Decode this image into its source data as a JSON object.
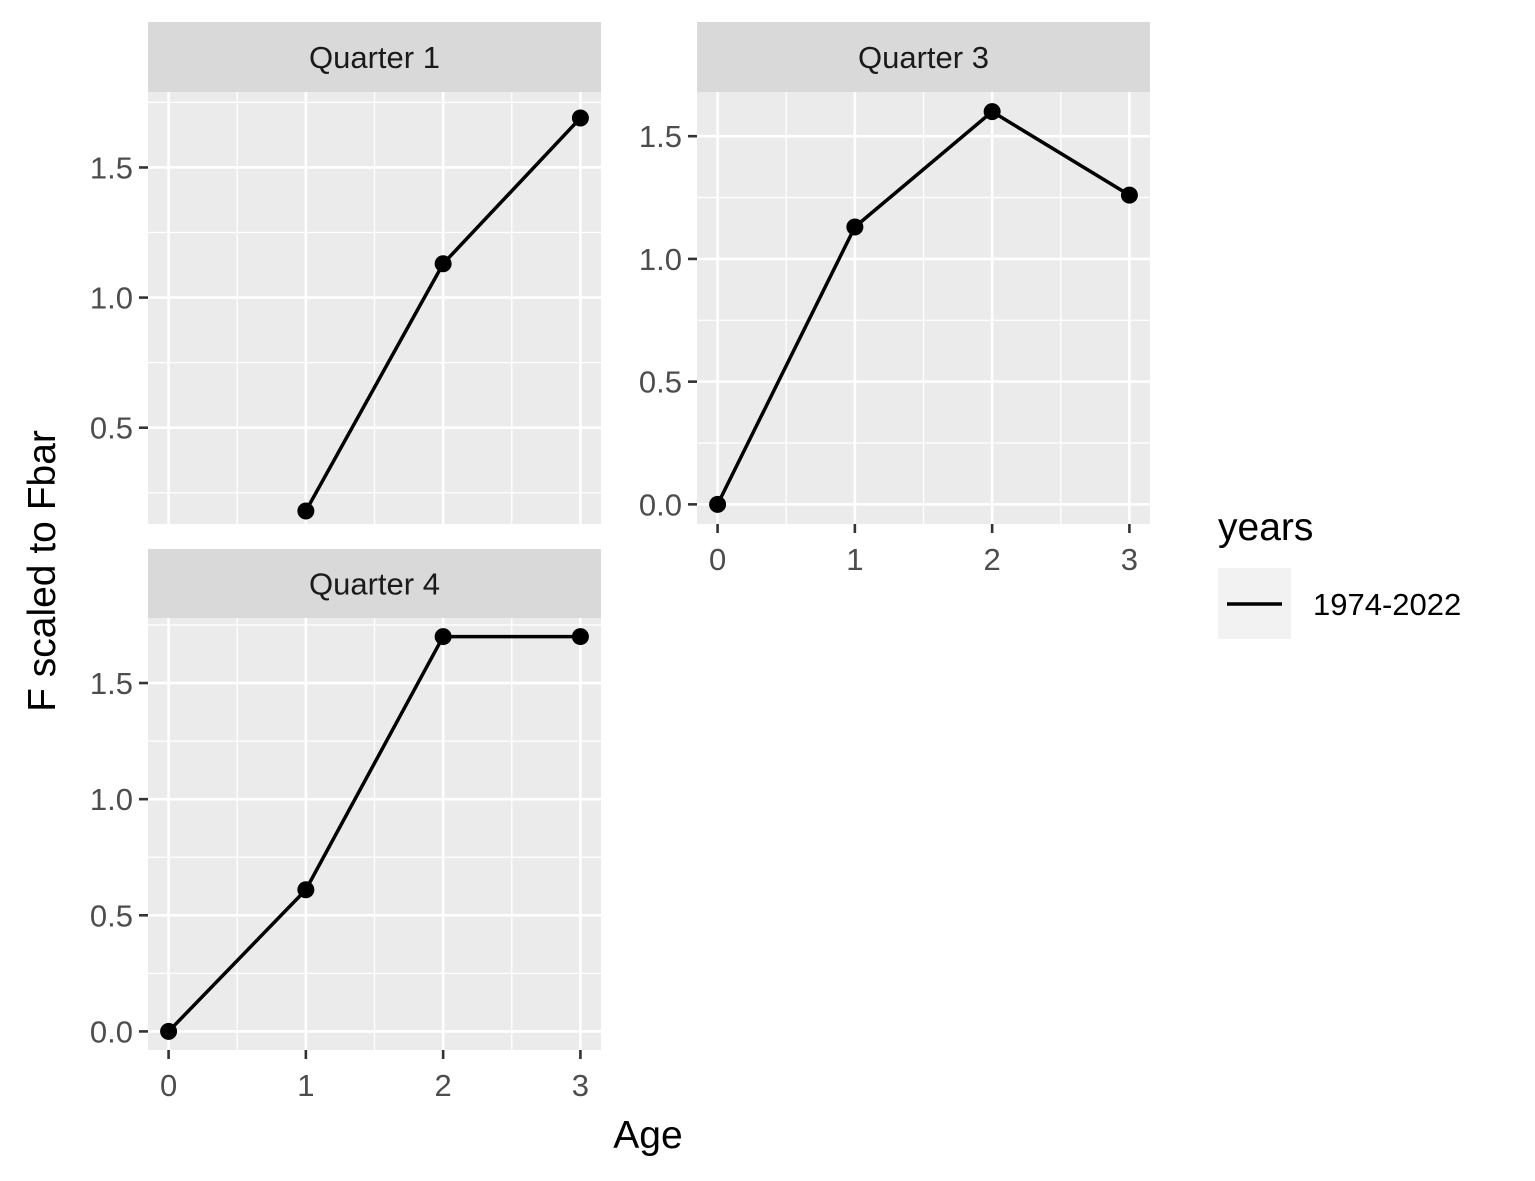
{
  "chart_data": {
    "type": "line",
    "ylabel": "F scaled to Fbar",
    "xlabel": "Age",
    "legend": {
      "title": "years",
      "entries": [
        "1974-2022"
      ],
      "placement": "right"
    },
    "colors": {
      "panel_bg": "#ebebeb",
      "strip_bg": "#d9d9d9",
      "grid": "#ffffff",
      "series": "#000000"
    },
    "grid": true,
    "panels": [
      {
        "title": "Quarter 1",
        "x": [
          1,
          2,
          3
        ],
        "y": [
          0.18,
          1.13,
          1.69
        ],
        "xlim": [
          -0.15,
          3.15
        ],
        "ylim": [
          0.13,
          1.79
        ],
        "yticks": [
          0.5,
          1.0,
          1.5
        ],
        "ytick_labels": [
          "0.5",
          "1.0",
          "1.5"
        ],
        "xticks": [],
        "xtick_labels": []
      },
      {
        "title": "Quarter 3",
        "x": [
          0,
          1,
          2,
          3
        ],
        "y": [
          0.0,
          1.13,
          1.6,
          1.26
        ],
        "xlim": [
          -0.15,
          3.15
        ],
        "ylim": [
          -0.08,
          1.68
        ],
        "yticks": [
          0.0,
          0.5,
          1.0,
          1.5
        ],
        "ytick_labels": [
          "0.0",
          "0.5",
          "1.0",
          "1.5"
        ],
        "xticks": [
          0,
          1,
          2,
          3
        ],
        "xtick_labels": [
          "0",
          "1",
          "2",
          "3"
        ]
      },
      {
        "title": "Quarter 4",
        "x": [
          0,
          1,
          2,
          3
        ],
        "y": [
          0.0,
          0.61,
          1.7,
          1.7
        ],
        "xlim": [
          -0.15,
          3.15
        ],
        "ylim": [
          -0.08,
          1.78
        ],
        "yticks": [
          0.0,
          0.5,
          1.0,
          1.5
        ],
        "ytick_labels": [
          "0.0",
          "0.5",
          "1.0",
          "1.5"
        ],
        "xticks": [
          0,
          1,
          2,
          3
        ],
        "xtick_labels": [
          "0",
          "1",
          "2",
          "3"
        ]
      }
    ]
  }
}
